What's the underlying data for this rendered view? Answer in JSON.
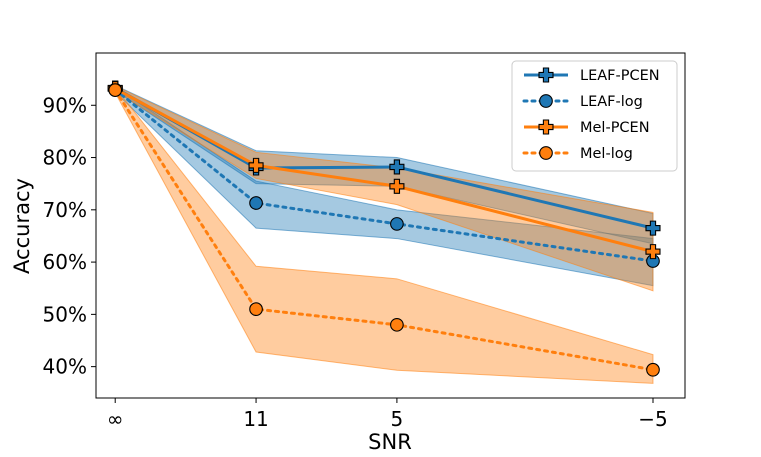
{
  "chart_data": {
    "type": "line",
    "title": "",
    "xlabel": "SNR",
    "ylabel": "Accuracy",
    "categories": [
      "∞",
      "11",
      "5",
      "−5"
    ],
    "x": [
      0,
      11,
      22,
      42
    ],
    "xlim": [
      -1.5,
      44.5
    ],
    "ylim": [
      34,
      100
    ],
    "yticks": [
      40,
      50,
      60,
      70,
      80,
      90
    ],
    "ytick_labels": [
      "40%",
      "50%",
      "60%",
      "70%",
      "80%",
      "90%"
    ],
    "legend_position": "top-right",
    "series": [
      {
        "name": "LEAF-PCEN",
        "color": "#1f77b4",
        "linestyle": "solid",
        "marker": "plus",
        "values": [
          93.3,
          78.0,
          78.2,
          66.5
        ],
        "band_lower": [
          92.8,
          75.0,
          74.5,
          63.5
        ],
        "band_upper": [
          93.8,
          81.3,
          80.0,
          69.3
        ]
      },
      {
        "name": "LEAF-log",
        "color": "#1f77b4",
        "linestyle": "dotted",
        "marker": "circle",
        "values": [
          93.0,
          71.3,
          67.3,
          60.2
        ],
        "band_lower": [
          92.5,
          66.5,
          64.5,
          55.5
        ],
        "band_upper": [
          93.5,
          75.5,
          70.0,
          64.5
        ]
      },
      {
        "name": "Mel-PCEN",
        "color": "#ff7f0e",
        "linestyle": "solid",
        "marker": "plus",
        "values": [
          93.2,
          78.5,
          74.5,
          62.0
        ],
        "band_lower": [
          92.7,
          76.0,
          71.0,
          54.5
        ],
        "band_upper": [
          93.7,
          81.0,
          78.0,
          69.5
        ]
      },
      {
        "name": "Mel-log",
        "color": "#ff7f0e",
        "linestyle": "dotted",
        "marker": "circle",
        "values": [
          92.9,
          51.0,
          48.0,
          39.4
        ],
        "band_lower": [
          92.4,
          42.8,
          39.3,
          36.8
        ],
        "band_upper": [
          93.4,
          59.2,
          56.8,
          42.3
        ]
      }
    ]
  }
}
